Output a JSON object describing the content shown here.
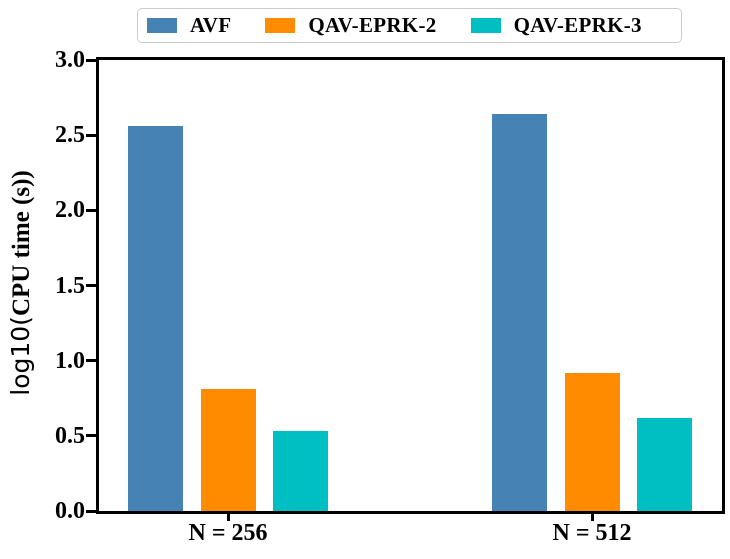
{
  "chart_data": {
    "type": "bar",
    "title": "",
    "xlabel": "",
    "ylabel_prefix": "log10(",
    "ylabel_main": "CPU time (s))",
    "categories": [
      "N = 256",
      "N = 512"
    ],
    "series": [
      {
        "name": "AVF",
        "color": "#4682B4",
        "values": [
          2.56,
          2.64
        ]
      },
      {
        "name": "QAV-EPRK-2",
        "color": "#FF8C00",
        "values": [
          0.81,
          0.92
        ]
      },
      {
        "name": "QAV-EPRK-3",
        "color": "#00BFC2",
        "values": [
          0.53,
          0.62
        ]
      }
    ],
    "ylim": [
      0,
      3
    ],
    "yticks": [
      "0.0",
      "0.5",
      "1.0",
      "1.5",
      "2.0",
      "2.5",
      "3.0"
    ],
    "legend_position": "top",
    "grid": false,
    "axis_color": "#000000",
    "background_color": "#ffffff"
  }
}
